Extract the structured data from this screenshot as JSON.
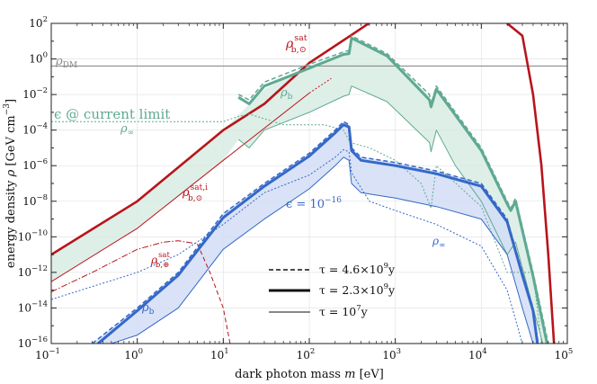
{
  "chart_data": {
    "type": "line",
    "title": "",
    "xlabel": "dark photon mass",
    "xlabel_var": "m",
    "xlabel_unit": "[eV]",
    "ylabel": "energy density",
    "ylabel_var": "ρ",
    "ylabel_unit": "[GeV cm",
    "ylabel_unit_exp": "−3",
    "ylabel_unit_close": "]",
    "xscale": "log",
    "yscale": "log",
    "xlim": [
      0.1,
      100000
    ],
    "ylim": [
      1e-16,
      100
    ],
    "x_ticks": [
      {
        "value": 0.1,
        "base": "10",
        "exp": "−1"
      },
      {
        "value": 1,
        "base": "10",
        "exp": "0"
      },
      {
        "value": 10,
        "base": "10",
        "exp": "1"
      },
      {
        "value": 100,
        "base": "10",
        "exp": "2"
      },
      {
        "value": 1000,
        "base": "10",
        "exp": "3"
      },
      {
        "value": 10000,
        "base": "10",
        "exp": "4"
      },
      {
        "value": 100000,
        "base": "10",
        "exp": "5"
      }
    ],
    "y_ticks": [
      {
        "value": 1e-16,
        "base": "10",
        "exp": "−16"
      },
      {
        "value": 1e-14,
        "base": "10",
        "exp": "−14"
      },
      {
        "value": 1e-12,
        "base": "10",
        "exp": "−12"
      },
      {
        "value": 1e-10,
        "base": "10",
        "exp": "−10"
      },
      {
        "value": 1e-08,
        "base": "10",
        "exp": "−8"
      },
      {
        "value": 1e-06,
        "base": "10",
        "exp": "−6"
      },
      {
        "value": 0.0001,
        "base": "10",
        "exp": "−4"
      },
      {
        "value": 0.01,
        "base": "10",
        "exp": "−2"
      },
      {
        "value": 1,
        "base": "10",
        "exp": "0"
      },
      {
        "value": 100,
        "base": "10",
        "exp": "2"
      }
    ],
    "grid": true,
    "legend": {
      "position": "bottom-center",
      "entries": [
        {
          "label": "τ = 4.6×10",
          "exp": "9",
          "suffix": "y",
          "style": "dashed"
        },
        {
          "label": "τ = 2.3×10",
          "exp": "9",
          "suffix": "y",
          "style": "thick"
        },
        {
          "label": "τ = 10",
          "exp": "7",
          "suffix": "y",
          "style": "thin"
        }
      ]
    },
    "colors": {
      "red": "#b8141b",
      "green": "#5fa992",
      "green_fill": "#d8ece3",
      "blue": "#3468c8",
      "blue_fill": "#d2ddf4",
      "gray": "#7f7f7f"
    },
    "annotations": [
      {
        "id": "rho-dm",
        "base": "ρ",
        "sub": "DM"
      },
      {
        "id": "rho-b-sun-sat",
        "base": "ρ",
        "sub": "b,⊙",
        "sup": "sat"
      },
      {
        "id": "rho-b-sun-sat-i",
        "base": "ρ",
        "sub": "b,⊙",
        "sup": "sat,i"
      },
      {
        "id": "rho-b-earth-sat",
        "base": "ρ",
        "sub": "b,⊕",
        "sup": "sat"
      },
      {
        "id": "rho-b-green",
        "base": "ρ",
        "sub": "b"
      },
      {
        "id": "rho-inf-green",
        "base": "ρ",
        "sub": "∞"
      },
      {
        "id": "eps-current",
        "text": "ϵ @ current limit"
      },
      {
        "id": "eps-1e-16",
        "text": "ϵ = 10",
        "sup": "−16"
      },
      {
        "id": "rho-inf-blue",
        "base": "ρ",
        "sub": "∞"
      },
      {
        "id": "rho-b-blue",
        "base": "ρ",
        "sub": "b"
      }
    ],
    "series": [
      {
        "name": "ρ_DM",
        "color": "gray",
        "width": 1.0,
        "dash": "",
        "x": [
          0.1,
          100000
        ],
        "y": [
          0.4,
          0.4
        ]
      },
      {
        "name": "ρ_b,⊙ sat",
        "color": "red",
        "width": 2.6,
        "dash": "",
        "x": [
          0.1,
          1,
          10,
          30,
          100,
          300,
          1000
        ],
        "y": [
          1e-11,
          1e-08,
          0.0001,
          0.003,
          0.6,
          20,
          1000
        ]
      },
      {
        "name": "ρ_b,⊙ sat,i",
        "color": "red",
        "width": 1.0,
        "dash": "",
        "x": [
          0.1,
          1,
          10,
          100
        ],
        "y": [
          3e-13,
          3e-10,
          2e-06,
          0.012
        ]
      },
      {
        "name": "ρ_b,⊙ sat,i (cont.)",
        "color": "red",
        "width": 1.0,
        "dash": "2,2",
        "x": [
          100,
          180
        ],
        "y": [
          0.012,
          0.08
        ]
      },
      {
        "name": "ρ_b,⊕ sat",
        "color": "red",
        "width": 1.0,
        "dash": "7,2,1.5,2",
        "x": [
          0.1,
          0.3,
          1,
          2,
          3,
          5
        ],
        "y": [
          8e-14,
          1e-12,
          2e-11,
          5e-11,
          6e-11,
          4e-11
        ]
      },
      {
        "name": "ρ_b,⊕ sat (dashed tail)",
        "color": "red",
        "width": 1.0,
        "dash": "5,3",
        "x": [
          5,
          7,
          10,
          12
        ],
        "y": [
          4e-11,
          1e-12,
          1e-14,
          1e-16
        ]
      },
      {
        "name": "solar exponential cutoff",
        "color": "red",
        "width": 2.6,
        "dash": "",
        "x": [
          20000,
          30000,
          40000,
          50000,
          60000,
          70000
        ],
        "y": [
          100,
          20,
          0.01,
          1e-06,
          1e-11,
          1e-16
        ]
      },
      {
        "name": "green ρ_b τ=4.6e9y",
        "color": "green",
        "width": 1.5,
        "dash": "5,3",
        "x": [
          15,
          20,
          30,
          100,
          250,
          290,
          310,
          800,
          2500,
          2600,
          3000,
          5000,
          10000,
          20000,
          22000,
          25000,
          40000,
          60000
        ],
        "y": [
          0.01,
          0.005,
          0.05,
          0.5,
          2.5,
          3,
          20,
          2,
          0.01,
          0.003,
          0.03,
          0.001,
          1e-05,
          1e-08,
          4e-09,
          1.5e-08,
          1e-12,
          1e-16
        ]
      },
      {
        "name": "green ρ_b τ=2.3e9y",
        "color": "green",
        "width": 3.0,
        "dash": "",
        "x": [
          15,
          20,
          30,
          100,
          250,
          290,
          310,
          800,
          2500,
          2600,
          3000,
          5000,
          10000,
          20000,
          22000,
          25000,
          40000,
          58000
        ],
        "y": [
          0.007,
          0.003,
          0.03,
          0.3,
          1.8,
          2,
          15,
          1.5,
          0.005,
          0.002,
          0.02,
          0.0007,
          7e-06,
          7e-09,
          3e-09,
          1e-08,
          6e-13,
          1e-16
        ]
      },
      {
        "name": "green ρ_b τ=1e7y",
        "color": "green",
        "width": 1.0,
        "dash": "",
        "x": [
          15,
          20,
          30,
          100,
          250,
          290,
          310,
          800,
          2500,
          2600,
          3000,
          5000,
          10000,
          20000,
          25000,
          40000,
          52000
        ],
        "y": [
          3e-05,
          1e-05,
          0.0001,
          0.001,
          0.008,
          0.01,
          0.03,
          0.004,
          2e-05,
          6e-06,
          0.0001,
          1e-06,
          1e-08,
          1e-11,
          5e-11,
          1e-14,
          1e-16
        ]
      },
      {
        "name": "green ρ_∞ (dotted)",
        "color": "green",
        "width": 1.0,
        "dash": "2,2",
        "x": [
          0.1,
          2,
          10,
          15,
          20,
          50,
          150,
          250,
          300,
          500,
          1000,
          2000,
          2600,
          3000,
          10000,
          20000,
          40000,
          50000
        ],
        "y": [
          0.0003,
          0.0003,
          0.0003,
          0.0006,
          0.0008,
          0.0002,
          0.0002,
          0.0001,
          2e-05,
          1e-05,
          2e-06,
          1e-07,
          4e-09,
          1e-06,
          5e-09,
          1e-12,
          1e-12,
          1e-16
        ]
      },
      {
        "name": "blue ρ_b τ=4.6e9y",
        "color": "blue",
        "width": 1.5,
        "dash": "5,3",
        "x": [
          0.3,
          1,
          3,
          10,
          30,
          100,
          200,
          250,
          290,
          310,
          400,
          1000,
          3000,
          10000,
          20000,
          30000,
          40000,
          46000
        ],
        "y": [
          1e-16,
          1e-14,
          1e-12,
          2e-09,
          1e-07,
          5e-06,
          0.0001,
          0.0003,
          0.0002,
          1e-05,
          3e-06,
          1.5e-06,
          5e-07,
          1e-07,
          1e-09,
          1e-12,
          1e-14,
          1e-16
        ]
      },
      {
        "name": "blue ρ_b τ=2.3e9y",
        "color": "blue",
        "width": 3.0,
        "dash": "",
        "x": [
          0.35,
          1,
          3,
          10,
          30,
          100,
          200,
          250,
          290,
          310,
          400,
          1000,
          3000,
          10000,
          20000,
          30000,
          40000,
          45000
        ],
        "y": [
          1e-16,
          7e-15,
          7e-13,
          1.2e-09,
          7e-08,
          3.5e-06,
          7e-05,
          0.0002,
          0.00015,
          7e-06,
          2e-06,
          1e-06,
          3.5e-07,
          7e-08,
          7e-10,
          7e-13,
          7e-15,
          1e-16
        ]
      },
      {
        "name": "blue ρ_b τ=1e7y",
        "color": "blue",
        "width": 1.0,
        "dash": "",
        "x": [
          0.5,
          1,
          3,
          10,
          30,
          100,
          200,
          250,
          290,
          310,
          400,
          1000,
          3000,
          10000,
          20000,
          30000,
          40000
        ],
        "y": [
          1e-16,
          3e-16,
          1e-14,
          2e-11,
          1e-09,
          5e-08,
          1e-06,
          3e-06,
          2e-06,
          1e-07,
          3e-08,
          1.5e-08,
          5e-09,
          1e-09,
          1e-11,
          1e-14,
          1e-16
        ]
      },
      {
        "name": "blue ρ_∞ (dotted)",
        "color": "blue",
        "width": 1.0,
        "dash": "2,2",
        "x": [
          0.1,
          1,
          3,
          10,
          30,
          100,
          200,
          250,
          290,
          310,
          500,
          1000,
          3000,
          10000,
          20000,
          30000
        ],
        "y": [
          3e-14,
          1e-12,
          1e-11,
          5e-10,
          3e-08,
          3e-07,
          3e-06,
          8e-06,
          6e-06,
          4e-07,
          1e-08,
          3e-09,
          5e-10,
          3e-11,
          1e-13,
          1e-16
        ]
      }
    ],
    "bands": [
      {
        "name": "green band",
        "color": "green_fill",
        "upper": {
          "x": [
            0.1,
            1,
            10,
            30,
            100,
            250,
            290,
            310,
            800,
            2500,
            2600,
            3000,
            5000,
            10000,
            20000,
            22000,
            25000,
            40000,
            60000
          ],
          "y": [
            1e-11,
            1e-08,
            0.0001,
            0.02,
            0.4,
            2,
            2.5,
            18,
            1.8,
            0.008,
            0.003,
            0.025,
            0.0008,
            8e-06,
            8e-09,
            3.5e-09,
            1.2e-08,
            8e-13,
            1e-16
          ]
        },
        "lower": {
          "x": [
            0.1,
            1,
            10,
            15,
            20,
            30,
            100,
            250,
            290,
            310,
            800,
            2500,
            2600,
            3000,
            5000,
            10000,
            20000,
            25000,
            40000,
            52000
          ],
          "y": [
            3e-13,
            3e-10,
            2e-06,
            3e-05,
            1e-05,
            0.0001,
            0.001,
            0.008,
            0.01,
            0.03,
            0.004,
            2e-05,
            6e-06,
            0.0001,
            1e-06,
            1e-08,
            1e-11,
            5e-11,
            1e-14,
            1e-16
          ]
        }
      },
      {
        "name": "blue band",
        "color": "blue_fill",
        "upper": {
          "x": [
            0.3,
            1,
            3,
            10,
            30,
            100,
            200,
            250,
            290,
            310,
            400,
            1000,
            3000,
            10000,
            20000,
            30000,
            40000,
            46000
          ],
          "y": [
            1e-16,
            1e-14,
            1e-12,
            2e-09,
            1e-07,
            5e-06,
            0.0001,
            0.0003,
            0.0002,
            1e-05,
            3e-06,
            1.5e-06,
            5e-07,
            1e-07,
            1e-09,
            1e-12,
            1e-14,
            1e-16
          ]
        },
        "lower": {
          "x": [
            0.5,
            1,
            3,
            10,
            30,
            100,
            200,
            250,
            290,
            310,
            400,
            1000,
            3000,
            10000,
            20000,
            30000,
            40000
          ],
          "y": [
            1e-16,
            3e-16,
            1e-14,
            2e-11,
            1e-09,
            5e-08,
            1e-06,
            3e-06,
            2e-06,
            1e-07,
            3e-08,
            1.5e-08,
            5e-09,
            1e-09,
            1e-11,
            1e-14,
            1e-16
          ]
        }
      }
    ]
  }
}
